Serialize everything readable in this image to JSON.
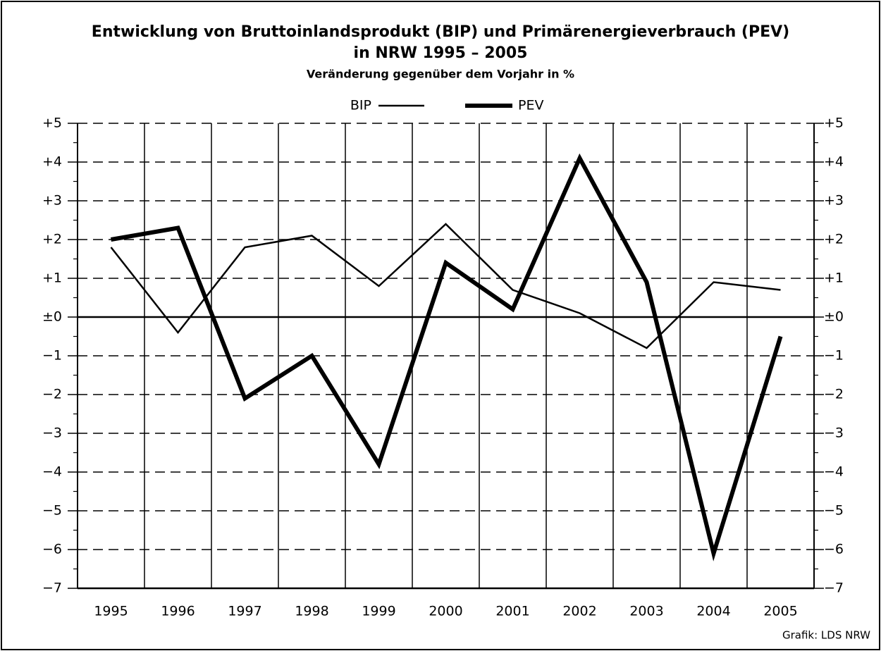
{
  "chart_data": {
    "type": "line",
    "title": [
      "Entwicklung von Bruttoinlandsprodukt (BIP) und Primärenergieverbrauch (PEV)",
      "in NRW 1995 – 2005"
    ],
    "subtitle": "Veränderung gegenüber dem Vorjahr in %",
    "source": "Grafik: LDS NRW",
    "categories": [
      "1995",
      "1996",
      "1997",
      "1998",
      "1999",
      "2000",
      "2001",
      "2002",
      "2003",
      "2004",
      "2005"
    ],
    "series": [
      {
        "name": "BIP",
        "color": "#000000",
        "line_width": 2.5,
        "values": [
          1.8,
          -0.4,
          1.8,
          2.1,
          0.8,
          2.4,
          0.7,
          0.1,
          -0.8,
          0.9,
          0.7
        ]
      },
      {
        "name": "PEV",
        "color": "#000000",
        "line_width": 6,
        "values": [
          2.0,
          2.3,
          -2.1,
          -1.0,
          -3.8,
          1.4,
          0.2,
          4.1,
          0.9,
          -6.1,
          -0.5
        ]
      }
    ],
    "ylim": [
      -7,
      5
    ],
    "yticks": [
      {
        "value": 5,
        "label": "+5"
      },
      {
        "value": 4,
        "label": "+4"
      },
      {
        "value": 3,
        "label": "+3"
      },
      {
        "value": 2,
        "label": "+2"
      },
      {
        "value": 1,
        "label": "+1"
      },
      {
        "value": 0,
        "label": "±0"
      },
      {
        "value": -1,
        "label": "−1"
      },
      {
        "value": -2,
        "label": "−2"
      },
      {
        "value": -3,
        "label": "−3"
      },
      {
        "value": -4,
        "label": "−4"
      },
      {
        "value": -5,
        "label": "−5"
      },
      {
        "value": -6,
        "label": "−6"
      },
      {
        "value": -7,
        "label": "−7"
      }
    ],
    "grid": true
  }
}
